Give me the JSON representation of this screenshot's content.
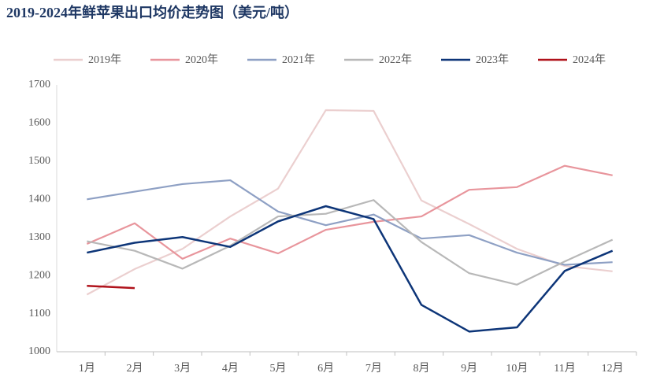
{
  "chart_data": {
    "type": "line",
    "title": "2019-2024年鲜苹果出口均价走势图（美元/吨）",
    "categories": [
      "1月",
      "2月",
      "3月",
      "4月",
      "5月",
      "6月",
      "7月",
      "8月",
      "9月",
      "10月",
      "11月",
      "12月"
    ],
    "series": [
      {
        "name": "2019年",
        "color": "#ebcfcf",
        "values": [
          1150,
          1217,
          1270,
          1355,
          1428,
          1634,
          1632,
          1397,
          1335,
          1270,
          1225,
          1211
        ]
      },
      {
        "name": "2020年",
        "color": "#e8959c",
        "values": [
          1283,
          1337,
          1244,
          1297,
          1258,
          1320,
          1341,
          1355,
          1425,
          1432,
          1488,
          1463
        ]
      },
      {
        "name": "2021年",
        "color": "#8ea0c4",
        "values": [
          1400,
          1420,
          1440,
          1450,
          1368,
          1332,
          1360,
          1297,
          1306,
          1260,
          1228,
          1235
        ]
      },
      {
        "name": "2022年",
        "color": "#b8b8b8",
        "values": [
          1290,
          1265,
          1218,
          1278,
          1355,
          1362,
          1398,
          1288,
          1206,
          1176,
          1237,
          1294
        ]
      },
      {
        "name": "2023年",
        "color": "#0d3578",
        "values": [
          1260,
          1286,
          1301,
          1275,
          1342,
          1382,
          1348,
          1123,
          1053,
          1064,
          1212,
          1265
        ]
      },
      {
        "name": "2024年",
        "color": "#b0121b",
        "values": [
          1173,
          1167,
          null,
          null,
          null,
          null,
          null,
          null,
          null,
          null,
          null,
          null
        ]
      }
    ],
    "ylim": [
      1000,
      1700
    ],
    "yticks": [
      1000,
      1100,
      1200,
      1300,
      1400,
      1500,
      1600,
      1700
    ],
    "grid": false,
    "legend": "top"
  }
}
